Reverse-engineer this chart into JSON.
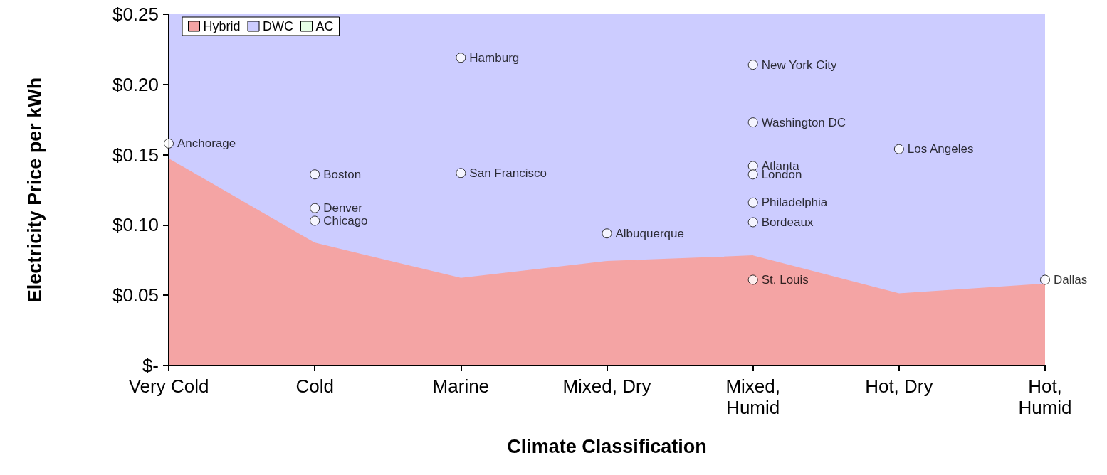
{
  "chart_data": {
    "type": "area",
    "xlabel": "Climate Classification",
    "ylabel": "Electricity Price per kWh",
    "categories": [
      "Very Cold",
      "Cold",
      "Marine",
      "Mixed, Dry",
      "Mixed,\nHumid",
      "Hot, Dry",
      "Hot,\nHumid"
    ],
    "series": [
      {
        "name": "Hybrid",
        "color": "#f4a4a4",
        "values": [
          0.147,
          0.087,
          0.062,
          0.074,
          0.078,
          0.051,
          0.058
        ]
      },
      {
        "name": "DWC",
        "color": "#ccccff",
        "values": [
          0.103,
          0.163,
          0.188,
          0.176,
          0.172,
          0.199,
          0.192
        ]
      },
      {
        "name": "AC",
        "color": "#e6ffe6",
        "values": [
          null,
          null,
          null,
          null,
          null,
          null,
          null
        ]
      },
      {
        "type": "scatter",
        "color": "#ffffff",
        "marker": "circle",
        "x": [
          "Very Cold",
          "Cold",
          "Cold",
          "Cold",
          "Marine",
          "Marine",
          "Mixed, Dry",
          "Mixed,\nHumid",
          "Mixed,\nHumid",
          "Mixed,\nHumid",
          "Mixed,\nHumid",
          "Mixed,\nHumid",
          "Mixed,\nHumid",
          "Mixed,\nHumid",
          "Hot, Dry",
          "Hot,\nHumid"
        ],
        "values": [
          0.158,
          0.136,
          0.112,
          0.103,
          0.219,
          0.137,
          0.094,
          0.214,
          0.173,
          0.142,
          0.136,
          0.116,
          0.102,
          0.061,
          0.154,
          0.061
        ]
      }
    ],
    "ylim": [
      0,
      0.25
    ],
    "yticks": [
      {
        "value": 0,
        "label": "$-"
      },
      {
        "value": 0.05,
        "label": "$0.05"
      },
      {
        "value": 0.1,
        "label": "$0.10"
      },
      {
        "value": 0.15,
        "label": "$0.15"
      },
      {
        "value": 0.2,
        "label": "$0.20"
      },
      {
        "value": 0.25,
        "label": "$0.25"
      }
    ],
    "annotations": [
      {
        "text": "Anchorage",
        "x": "Very Cold",
        "y": 0.158
      },
      {
        "text": "Boston",
        "x": "Cold",
        "y": 0.136
      },
      {
        "text": "Denver",
        "x": "Cold",
        "y": 0.112
      },
      {
        "text": "Chicago",
        "x": "Cold",
        "y": 0.103
      },
      {
        "text": "Hamburg",
        "x": "Marine",
        "y": 0.219
      },
      {
        "text": "San Francisco",
        "x": "Marine",
        "y": 0.137
      },
      {
        "text": "Albuquerque",
        "x": "Mixed, Dry",
        "y": 0.094
      },
      {
        "text": "New York City",
        "x": "Mixed,\nHumid",
        "y": 0.214
      },
      {
        "text": "Washington DC",
        "x": "Mixed,\nHumid",
        "y": 0.173
      },
      {
        "text": "Atlanta",
        "x": "Mixed,\nHumid",
        "y": 0.142
      },
      {
        "text": "London",
        "x": "Mixed,\nHumid",
        "y": 0.136
      },
      {
        "text": "Philadelphia",
        "x": "Mixed,\nHumid",
        "y": 0.116
      },
      {
        "text": "Bordeaux",
        "x": "Mixed,\nHumid",
        "y": 0.102
      },
      {
        "text": "St. Louis",
        "x": "Mixed,\nHumid",
        "y": 0.061
      },
      {
        "text": "Los Angeles",
        "x": "Hot, Dry",
        "y": 0.154
      },
      {
        "text": "Dallas",
        "x": "Hot,\nHumid",
        "y": 0.061
      }
    ],
    "legend": "top left",
    "grid": false,
    "stacked": true
  }
}
